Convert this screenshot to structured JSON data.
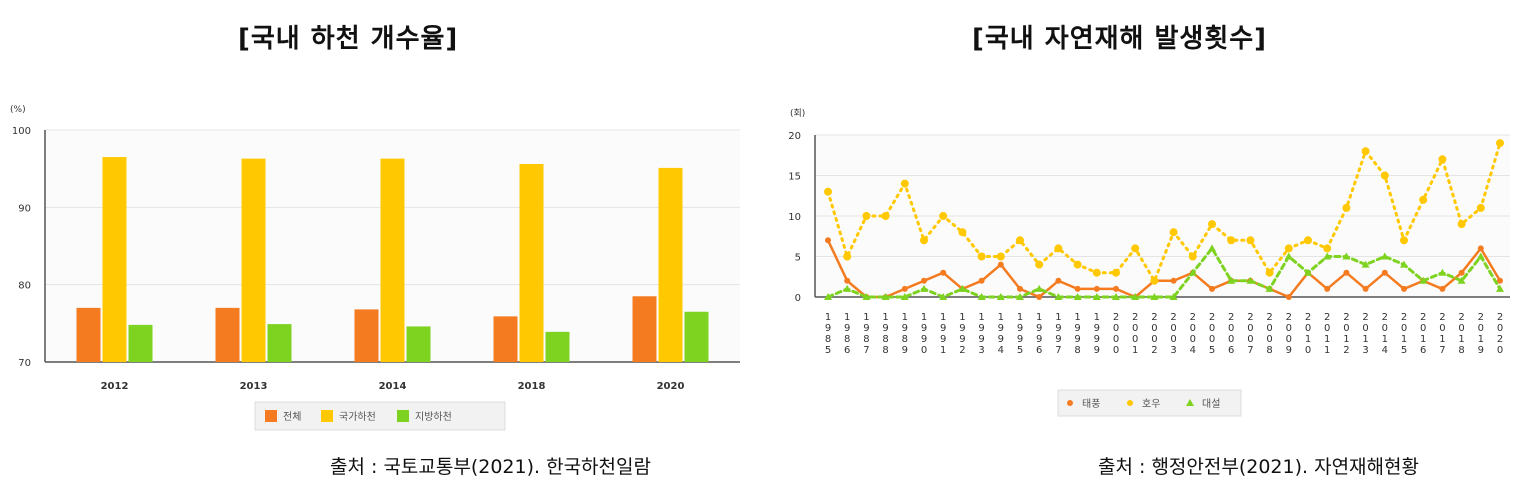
{
  "chart_data": [
    {
      "type": "bar",
      "title": "[국내 하천 개수율]",
      "unit_label": "(%)",
      "ylim": [
        70,
        100
      ],
      "yticks": [
        70,
        80,
        90,
        100
      ],
      "categories": [
        "2012",
        "2013",
        "2014",
        "2018",
        "2020"
      ],
      "series": [
        {
          "name": "전체",
          "color": "#f47b20",
          "values": [
            77.0,
            77.0,
            76.8,
            75.9,
            78.5
          ]
        },
        {
          "name": "국가하천",
          "color": "#ffc800",
          "values": [
            96.5,
            96.3,
            96.3,
            95.6,
            95.1
          ]
        },
        {
          "name": "지방하천",
          "color": "#7ed321",
          "values": [
            74.8,
            74.9,
            74.6,
            73.9,
            76.5
          ]
        }
      ],
      "legend_position": "bottom",
      "grid": true,
      "source": "출처 : 국토교통부(2021). 한국하천일람"
    },
    {
      "type": "line",
      "title": "[국내 자연재해 발생횟수]",
      "unit_label": "(회)",
      "ylim": [
        0,
        20
      ],
      "yticks": [
        0,
        5,
        10,
        15,
        20
      ],
      "x": [
        "1985",
        "1986",
        "1987",
        "1988",
        "1989",
        "1990",
        "1991",
        "1992",
        "1993",
        "1994",
        "1995",
        "1996",
        "1997",
        "1998",
        "1999",
        "2000",
        "2001",
        "2002",
        "2003",
        "2004",
        "2005",
        "2006",
        "2007",
        "2008",
        "2009",
        "2010",
        "2011",
        "2012",
        "2013",
        "2014",
        "2015",
        "2016",
        "2017",
        "2018",
        "2019",
        "2020"
      ],
      "series": [
        {
          "name": "태풍",
          "color": "#f47b20",
          "marker": "circle",
          "style": "solid",
          "values": [
            7,
            2,
            0,
            0,
            1,
            2,
            3,
            1,
            2,
            4,
            1,
            0,
            2,
            1,
            1,
            1,
            0,
            2,
            2,
            3,
            1,
            2,
            2,
            1,
            0,
            3,
            1,
            3,
            1,
            3,
            1,
            2,
            1,
            3,
            6,
            2
          ]
        },
        {
          "name": "호우",
          "color": "#ffc800",
          "marker": "circle",
          "style": "dotted",
          "values": [
            13,
            5,
            10,
            10,
            14,
            7,
            10,
            8,
            5,
            5,
            7,
            4,
            6,
            4,
            3,
            3,
            6,
            2,
            8,
            5,
            9,
            7,
            7,
            3,
            6,
            7,
            6,
            11,
            18,
            15,
            7,
            12,
            17,
            9,
            11,
            19
          ]
        },
        {
          "name": "대설",
          "color": "#7ed321",
          "marker": "triangle",
          "style": "dashed",
          "values": [
            0,
            1,
            0,
            0,
            0,
            1,
            0,
            1,
            0,
            0,
            0,
            1,
            0,
            0,
            0,
            0,
            0,
            0,
            0,
            3,
            6,
            2,
            2,
            1,
            5,
            3,
            5,
            5,
            4,
            5,
            4,
            2,
            3,
            2,
            5,
            1
          ]
        }
      ],
      "legend_position": "bottom",
      "grid": true,
      "source": "출처 : 행정안전부(2021). 자연재해현황"
    }
  ]
}
